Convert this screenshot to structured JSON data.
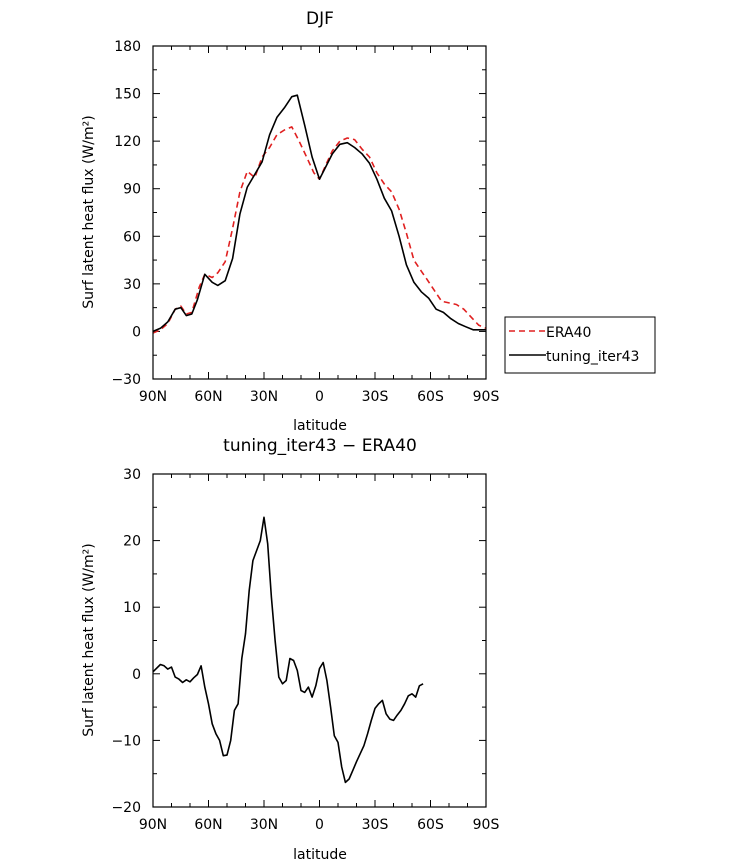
{
  "chart_data": [
    {
      "type": "line",
      "title": "DJF",
      "xlabel": "latitude",
      "ylabel": "Surf latent heat flux (W/m²)",
      "xlim": [
        90,
        -90
      ],
      "ylim": [
        -30,
        180
      ],
      "yticks": [
        -30,
        0,
        30,
        60,
        90,
        120,
        150,
        180
      ],
      "xticks": [
        {
          "value": 90,
          "label": "90N"
        },
        {
          "value": 60,
          "label": "60N"
        },
        {
          "value": 30,
          "label": "30N"
        },
        {
          "value": 0,
          "label": "0"
        },
        {
          "value": -30,
          "label": "30S"
        },
        {
          "value": -60,
          "label": "60S"
        },
        {
          "value": -90,
          "label": "90S"
        }
      ],
      "legend": "right",
      "series": [
        {
          "name": "ERA40",
          "color": "#e02020",
          "dash": true,
          "points": [
            [
              90,
              -1
            ],
            [
              86,
              1
            ],
            [
              82,
              5
            ],
            [
              78,
              14
            ],
            [
              75,
              16
            ],
            [
              72,
              11
            ],
            [
              69,
              12
            ],
            [
              65,
              28
            ],
            [
              62,
              36
            ],
            [
              58,
              34
            ],
            [
              55,
              37
            ],
            [
              51,
              44
            ],
            [
              47,
              65
            ],
            [
              43,
              88
            ],
            [
              39,
              101
            ],
            [
              35,
              97
            ],
            [
              31,
              110
            ],
            [
              27,
              116
            ],
            [
              23,
              124
            ],
            [
              19,
              127
            ],
            [
              15,
              129
            ],
            [
              11,
              120
            ],
            [
              7,
              110
            ],
            [
              3,
              100
            ],
            [
              0,
              96
            ],
            [
              -3,
              104
            ],
            [
              -7,
              114
            ],
            [
              -11,
              120
            ],
            [
              -15,
              122
            ],
            [
              -19,
              121
            ],
            [
              -23,
              115
            ],
            [
              -27,
              110
            ],
            [
              -31,
              100
            ],
            [
              -35,
              93
            ],
            [
              -39,
              88
            ],
            [
              -43,
              77
            ],
            [
              -47,
              62
            ],
            [
              -51,
              45
            ],
            [
              -55,
              38
            ],
            [
              -58,
              33
            ],
            [
              -62,
              26
            ],
            [
              -66,
              19
            ],
            [
              -70,
              18
            ],
            [
              -74,
              17
            ],
            [
              -78,
              14
            ],
            [
              -82,
              9
            ],
            [
              -86,
              4
            ],
            [
              -90,
              2
            ]
          ]
        },
        {
          "name": "tuning_iter43",
          "color": "#000000",
          "dash": false,
          "points": [
            [
              90,
              0
            ],
            [
              86,
              2
            ],
            [
              82,
              6
            ],
            [
              78,
              14
            ],
            [
              75,
              15
            ],
            [
              72,
              10
            ],
            [
              69,
              11
            ],
            [
              66,
              20
            ],
            [
              62,
              36
            ],
            [
              58,
              31
            ],
            [
              55,
              29
            ],
            [
              51,
              32
            ],
            [
              47,
              46
            ],
            [
              43,
              74
            ],
            [
              39,
              91
            ],
            [
              35,
              99
            ],
            [
              31,
              107
            ],
            [
              27,
              124
            ],
            [
              23,
              135
            ],
            [
              19,
              141
            ],
            [
              15,
              148
            ],
            [
              12,
              149
            ],
            [
              8,
              130
            ],
            [
              4,
              110
            ],
            [
              0,
              96
            ],
            [
              -3,
              103
            ],
            [
              -7,
              112
            ],
            [
              -11,
              118
            ],
            [
              -15,
              119
            ],
            [
              -19,
              116
            ],
            [
              -23,
              112
            ],
            [
              -27,
              106
            ],
            [
              -31,
              96
            ],
            [
              -35,
              84
            ],
            [
              -39,
              76
            ],
            [
              -43,
              60
            ],
            [
              -47,
              42
            ],
            [
              -51,
              31
            ],
            [
              -55,
              25
            ],
            [
              -59,
              21
            ],
            [
              -63,
              14
            ],
            [
              -67,
              12
            ],
            [
              -71,
              8
            ],
            [
              -75,
              5
            ],
            [
              -79,
              3
            ],
            [
              -83,
              1
            ],
            [
              -87,
              1
            ],
            [
              -90,
              1
            ]
          ]
        }
      ]
    },
    {
      "type": "line",
      "title": "tuning_iter43 − ERA40",
      "xlabel": "latitude",
      "ylabel": "Surf latent heat flux (W/m²)",
      "xlim": [
        90,
        -90
      ],
      "ylim": [
        -20,
        30
      ],
      "yticks": [
        -20,
        -10,
        0,
        10,
        20,
        30
      ],
      "xticks": [
        {
          "value": 90,
          "label": "90N"
        },
        {
          "value": 60,
          "label": "60N"
        },
        {
          "value": 30,
          "label": "30N"
        },
        {
          "value": 0,
          "label": "0"
        },
        {
          "value": -30,
          "label": "30S"
        },
        {
          "value": -60,
          "label": "60S"
        },
        {
          "value": -90,
          "label": "90S"
        }
      ],
      "series": [
        {
          "color": "#000000",
          "dash": false,
          "points": [
            [
              90,
              0.3
            ],
            [
              86,
              1.4
            ],
            [
              84,
              1.2
            ],
            [
              82,
              0.7
            ],
            [
              80,
              1.0
            ],
            [
              78,
              -0.5
            ],
            [
              76,
              -0.8
            ],
            [
              74,
              -1.3
            ],
            [
              72,
              -0.9
            ],
            [
              70,
              -1.2
            ],
            [
              68,
              -0.6
            ],
            [
              66,
              -0.1
            ],
            [
              64,
              1.2
            ],
            [
              62,
              -2
            ],
            [
              60,
              -4.5
            ],
            [
              58,
              -7.5
            ],
            [
              56,
              -9.0
            ],
            [
              54,
              -10
            ],
            [
              52,
              -12.3
            ],
            [
              50,
              -12.2
            ],
            [
              48,
              -10
            ],
            [
              46,
              -5.5
            ],
            [
              44,
              -4.5
            ],
            [
              42,
              2.3
            ],
            [
              40,
              6
            ],
            [
              38,
              12.5
            ],
            [
              36,
              17
            ],
            [
              34,
              18.5
            ],
            [
              32,
              20
            ],
            [
              30,
              23.5
            ],
            [
              28,
              19.5
            ],
            [
              26,
              11.5
            ],
            [
              24,
              5
            ],
            [
              22,
              -0.5
            ],
            [
              20,
              -1.5
            ],
            [
              18,
              -1.0
            ],
            [
              16,
              2.3
            ],
            [
              14,
              2.0
            ],
            [
              12,
              0.5
            ],
            [
              10,
              -2.5
            ],
            [
              8,
              -2.8
            ],
            [
              6,
              -2.0
            ],
            [
              4,
              -3.5
            ],
            [
              2,
              -1.8
            ],
            [
              0,
              0.8
            ],
            [
              -2,
              1.7
            ],
            [
              -4,
              -1
            ],
            [
              -6,
              -5
            ],
            [
              -8,
              -9.3
            ],
            [
              -10,
              -10.3
            ],
            [
              -12,
              -14
            ],
            [
              -14,
              -16.3
            ],
            [
              -16,
              -15.8
            ],
            [
              -18,
              -14.5
            ],
            [
              -20,
              -13.2
            ],
            [
              -22,
              -12
            ],
            [
              -24,
              -10.8
            ],
            [
              -26,
              -9
            ],
            [
              -28,
              -7
            ],
            [
              -30,
              -5.2
            ],
            [
              -32,
              -4.5
            ],
            [
              -34,
              -4
            ],
            [
              -36,
              -6
            ],
            [
              -38,
              -6.8
            ],
            [
              -40,
              -7
            ],
            [
              -42,
              -6.2
            ],
            [
              -44,
              -5.5
            ],
            [
              -46,
              -4.5
            ],
            [
              -48,
              -3.3
            ],
            [
              -50,
              -3.0
            ],
            [
              -52,
              -3.5
            ],
            [
              -54,
              -1.8
            ],
            [
              -56,
              -1.5
            ]
          ]
        }
      ]
    }
  ]
}
